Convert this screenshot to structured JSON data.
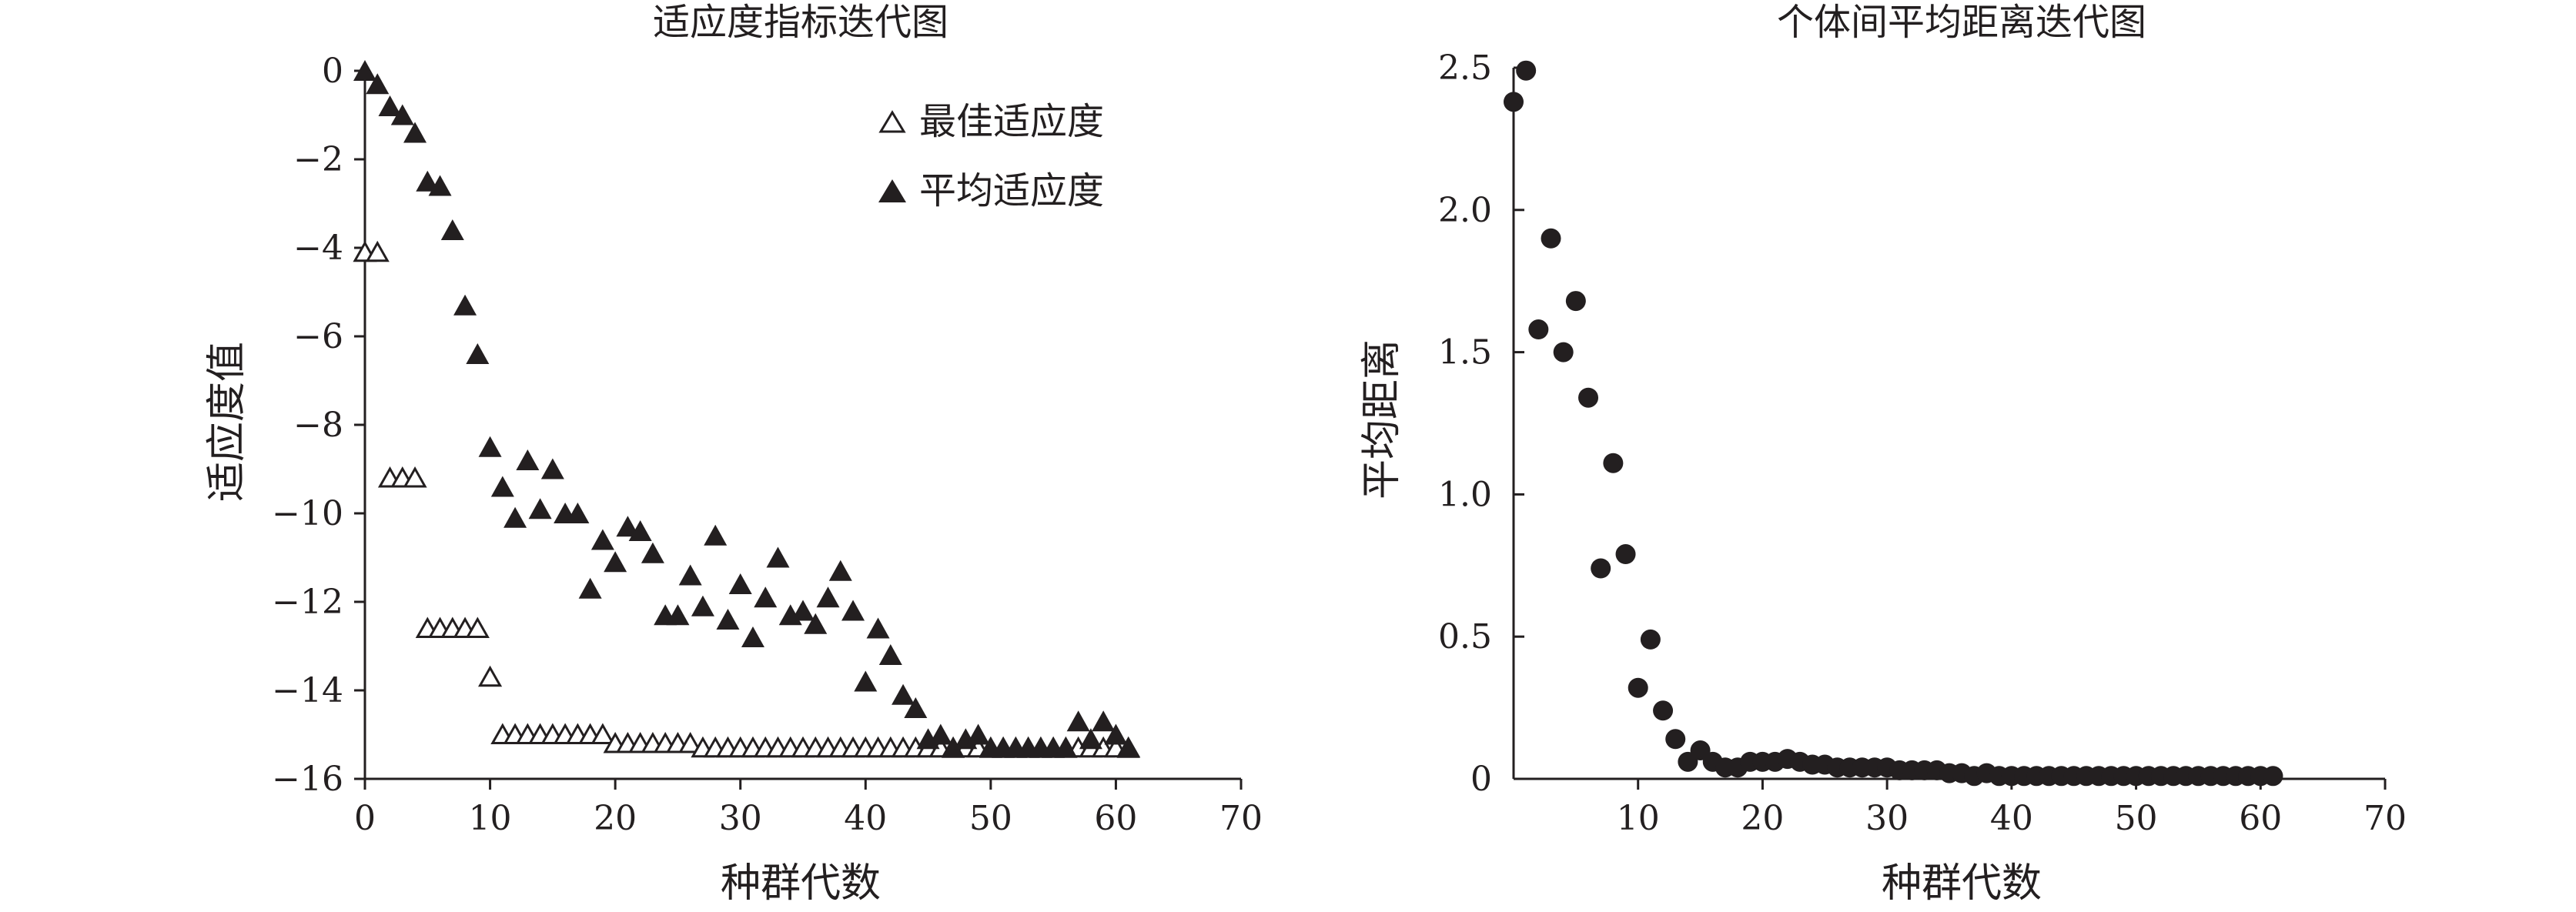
{
  "chart_data": [
    {
      "type": "scatter",
      "title": "适应度指标迭代图",
      "xlabel": "种群代数",
      "ylabel": "适应度值",
      "xlim": [
        0,
        70
      ],
      "ylim": [
        -16,
        0
      ],
      "x_ticks": [
        "0",
        "10",
        "20",
        "30",
        "40",
        "50",
        "60",
        "70"
      ],
      "y_ticks": [
        "0",
        "−2",
        "−4",
        "−6",
        "−8",
        "−10",
        "−12",
        "−14",
        "−16"
      ],
      "grid": false,
      "legend_position": "top-right",
      "series": [
        {
          "name": "最佳适应度",
          "marker": "triangle-open",
          "color": "#231f20",
          "points": [
            [
              0,
              -4.1
            ],
            [
              1,
              -4.1
            ],
            [
              2,
              -9.2
            ],
            [
              3,
              -9.2
            ],
            [
              4,
              -9.2
            ],
            [
              5,
              -12.6
            ],
            [
              6,
              -12.6
            ],
            [
              7,
              -12.6
            ],
            [
              8,
              -12.6
            ],
            [
              9,
              -12.6
            ],
            [
              10,
              -13.7
            ],
            [
              11,
              -15.0
            ],
            [
              12,
              -15.0
            ],
            [
              13,
              -15.0
            ],
            [
              14,
              -15.0
            ],
            [
              15,
              -15.0
            ],
            [
              16,
              -15.0
            ],
            [
              17,
              -15.0
            ],
            [
              18,
              -15.0
            ],
            [
              19,
              -15.0
            ],
            [
              20,
              -15.2
            ],
            [
              21,
              -15.2
            ],
            [
              22,
              -15.2
            ],
            [
              23,
              -15.2
            ],
            [
              24,
              -15.2
            ],
            [
              25,
              -15.2
            ],
            [
              26,
              -15.2
            ],
            [
              27,
              -15.3
            ],
            [
              28,
              -15.3
            ],
            [
              29,
              -15.3
            ],
            [
              30,
              -15.3
            ],
            [
              31,
              -15.3
            ],
            [
              32,
              -15.3
            ],
            [
              33,
              -15.3
            ],
            [
              34,
              -15.3
            ],
            [
              35,
              -15.3
            ],
            [
              36,
              -15.3
            ],
            [
              37,
              -15.3
            ],
            [
              38,
              -15.3
            ],
            [
              39,
              -15.3
            ],
            [
              40,
              -15.3
            ],
            [
              41,
              -15.3
            ],
            [
              42,
              -15.3
            ],
            [
              43,
              -15.3
            ],
            [
              44,
              -15.3
            ],
            [
              45,
              -15.3
            ],
            [
              46,
              -15.3
            ],
            [
              47,
              -15.3
            ],
            [
              48,
              -15.3
            ],
            [
              49,
              -15.3
            ],
            [
              50,
              -15.3
            ],
            [
              51,
              -15.3
            ],
            [
              52,
              -15.3
            ],
            [
              53,
              -15.3
            ],
            [
              54,
              -15.3
            ],
            [
              55,
              -15.3
            ],
            [
              56,
              -15.3
            ],
            [
              57,
              -15.3
            ],
            [
              58,
              -15.3
            ],
            [
              59,
              -15.3
            ],
            [
              60,
              -15.3
            ],
            [
              61,
              -15.3
            ]
          ]
        },
        {
          "name": "平均适应度",
          "marker": "triangle-filled",
          "color": "#231f20",
          "points": [
            [
              0,
              0
            ],
            [
              1,
              -0.3
            ],
            [
              2,
              -0.8
            ],
            [
              3,
              -1.0
            ],
            [
              4,
              -1.4
            ],
            [
              5,
              -2.5
            ],
            [
              6,
              -2.6
            ],
            [
              7,
              -3.6
            ],
            [
              8,
              -5.3
            ],
            [
              9,
              -6.4
            ],
            [
              10,
              -8.5
            ],
            [
              11,
              -9.4
            ],
            [
              12,
              -10.1
            ],
            [
              13,
              -8.8
            ],
            [
              14,
              -9.9
            ],
            [
              15,
              -9.0
            ],
            [
              16,
              -10.0
            ],
            [
              17,
              -10.0
            ],
            [
              18,
              -11.7
            ],
            [
              19,
              -10.6
            ],
            [
              20,
              -11.1
            ],
            [
              21,
              -10.3
            ],
            [
              22,
              -10.4
            ],
            [
              23,
              -10.9
            ],
            [
              24,
              -12.3
            ],
            [
              25,
              -12.3
            ],
            [
              26,
              -11.4
            ],
            [
              27,
              -12.1
            ],
            [
              28,
              -10.5
            ],
            [
              29,
              -12.4
            ],
            [
              30,
              -11.6
            ],
            [
              31,
              -12.8
            ],
            [
              32,
              -11.9
            ],
            [
              33,
              -11.0
            ],
            [
              34,
              -12.3
            ],
            [
              35,
              -12.2
            ],
            [
              36,
              -12.5
            ],
            [
              37,
              -11.9
            ],
            [
              38,
              -11.3
            ],
            [
              39,
              -12.2
            ],
            [
              40,
              -13.8
            ],
            [
              41,
              -12.6
            ],
            [
              42,
              -13.2
            ],
            [
              43,
              -14.1
            ],
            [
              44,
              -14.4
            ],
            [
              45,
              -15.1
            ],
            [
              46,
              -15.0
            ],
            [
              47,
              -15.3
            ],
            [
              48,
              -15.1
            ],
            [
              49,
              -15.0
            ],
            [
              50,
              -15.3
            ],
            [
              51,
              -15.3
            ],
            [
              52,
              -15.3
            ],
            [
              53,
              -15.3
            ],
            [
              54,
              -15.3
            ],
            [
              55,
              -15.3
            ],
            [
              56,
              -15.3
            ],
            [
              57,
              -14.7
            ],
            [
              58,
              -15.1
            ],
            [
              59,
              -14.7
            ],
            [
              60,
              -15.0
            ],
            [
              61,
              -15.3
            ]
          ]
        }
      ]
    },
    {
      "type": "scatter",
      "title": "个体间平均距离迭代图",
      "xlabel": "种群代数",
      "ylabel": "平均距离",
      "xlim": [
        0,
        70
      ],
      "ylim": [
        0,
        2.5
      ],
      "x_ticks": [
        "10",
        "20",
        "30",
        "40",
        "50",
        "60",
        "70"
      ],
      "y_ticks": [
        "0",
        "0.5",
        "1.0",
        "1.5",
        "2.0",
        "2.5"
      ],
      "grid": false,
      "series": [
        {
          "marker": "circle-filled",
          "color": "#231f20",
          "points": [
            [
              0,
              2.38
            ],
            [
              1,
              2.49
            ],
            [
              2,
              1.58
            ],
            [
              3,
              1.9
            ],
            [
              4,
              1.5
            ],
            [
              5,
              1.68
            ],
            [
              6,
              1.34
            ],
            [
              7,
              0.74
            ],
            [
              8,
              1.11
            ],
            [
              9,
              0.79
            ],
            [
              10,
              0.32
            ],
            [
              11,
              0.49
            ],
            [
              12,
              0.24
            ],
            [
              13,
              0.14
            ],
            [
              14,
              0.06
            ],
            [
              15,
              0.1
            ],
            [
              16,
              0.06
            ],
            [
              17,
              0.04
            ],
            [
              18,
              0.04
            ],
            [
              19,
              0.06
            ],
            [
              20,
              0.06
            ],
            [
              21,
              0.06
            ],
            [
              22,
              0.07
            ],
            [
              23,
              0.06
            ],
            [
              24,
              0.05
            ],
            [
              25,
              0.05
            ],
            [
              26,
              0.04
            ],
            [
              27,
              0.04
            ],
            [
              28,
              0.04
            ],
            [
              29,
              0.04
            ],
            [
              30,
              0.04
            ],
            [
              31,
              0.03
            ],
            [
              32,
              0.03
            ],
            [
              33,
              0.03
            ],
            [
              34,
              0.03
            ],
            [
              35,
              0.02
            ],
            [
              36,
              0.02
            ],
            [
              37,
              0.01
            ],
            [
              38,
              0.02
            ],
            [
              39,
              0.01
            ],
            [
              40,
              0.01
            ],
            [
              41,
              0.01
            ],
            [
              42,
              0.01
            ],
            [
              43,
              0.01
            ],
            [
              44,
              0.01
            ],
            [
              45,
              0.01
            ],
            [
              46,
              0.01
            ],
            [
              47,
              0.01
            ],
            [
              48,
              0.01
            ],
            [
              49,
              0.01
            ],
            [
              50,
              0.01
            ],
            [
              51,
              0.01
            ],
            [
              52,
              0.01
            ],
            [
              53,
              0.01
            ],
            [
              54,
              0.01
            ],
            [
              55,
              0.01
            ],
            [
              56,
              0.01
            ],
            [
              57,
              0.01
            ],
            [
              58,
              0.01
            ],
            [
              59,
              0.01
            ],
            [
              60,
              0.01
            ],
            [
              61,
              0.01
            ]
          ]
        }
      ]
    }
  ]
}
